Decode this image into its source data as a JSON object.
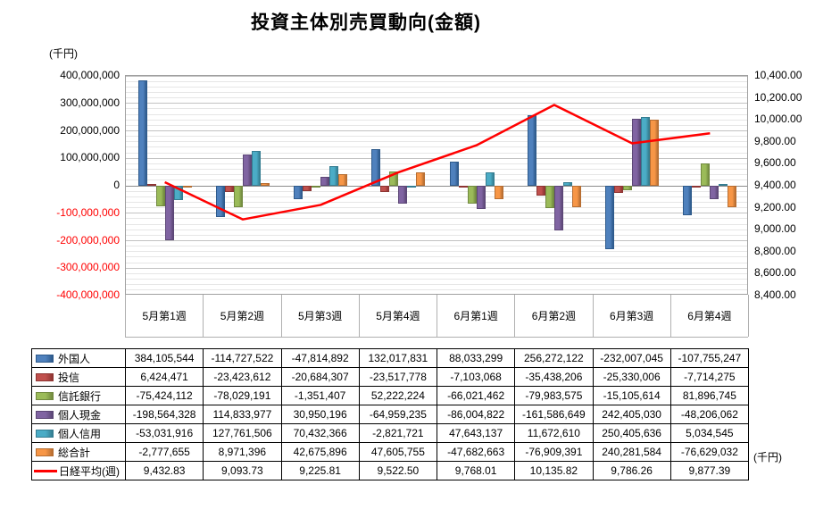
{
  "title": "投資主体別売買動向(金額)",
  "left_axis_unit": "(千円)",
  "right_axis_unit": "(千円)",
  "chart_data": {
    "type": "bar",
    "subtype": "clustered-column-with-line",
    "grid": true,
    "legend_position": "table-left",
    "categories": [
      "5月第1週",
      "5月第2週",
      "5月第3週",
      "5月第4週",
      "6月第1週",
      "6月第2週",
      "6月第3週",
      "6月第4週"
    ],
    "series": [
      {
        "name": "外国人",
        "color": "#4F81BD",
        "border": "#2E5A8B",
        "values": [
          384105544,
          -114727522,
          -47814892,
          132017831,
          88033299,
          256272122,
          -232007045,
          -107755247
        ]
      },
      {
        "name": "投信",
        "color": "#C0504D",
        "border": "#8E3533",
        "values": [
          6424471,
          -23423612,
          -20684307,
          -23517778,
          -7103068,
          -35438206,
          -25330006,
          -7714275
        ]
      },
      {
        "name": "信託銀行",
        "color": "#9BBB59",
        "border": "#71893F",
        "values": [
          -75424112,
          -78029191,
          -1351407,
          52222224,
          -66021462,
          -79983575,
          -15105614,
          81896745
        ]
      },
      {
        "name": "個人現金",
        "color": "#8064A2",
        "border": "#5C4776",
        "values": [
          -198564328,
          114833977,
          30950196,
          -64959235,
          -86004822,
          -161586649,
          242405030,
          -48206062
        ]
      },
      {
        "name": "個人信用",
        "color": "#4BACC6",
        "border": "#357D91",
        "values": [
          -53031916,
          127761506,
          70432366,
          -2821721,
          47643137,
          11672610,
          250405636,
          5034545
        ]
      },
      {
        "name": "総合計",
        "color": "#F79646",
        "border": "#B66D31",
        "values": [
          -2777655,
          8971396,
          42675896,
          47605755,
          -47682663,
          -76909391,
          240281584,
          -76629032
        ]
      }
    ],
    "line_series": {
      "name": "日経平均(週)",
      "color": "#FF0000",
      "axis": "right",
      "values": [
        9432.83,
        9093.73,
        9225.81,
        9522.5,
        9768.01,
        10135.82,
        9786.26,
        9877.39
      ]
    },
    "left_axis": {
      "min": -400000000,
      "max": 400000000,
      "major": 100000000,
      "minor": 20000000,
      "negative_tick_color": "#FF0000"
    },
    "right_axis": {
      "min": 8400,
      "max": 10400,
      "step": 200
    }
  }
}
